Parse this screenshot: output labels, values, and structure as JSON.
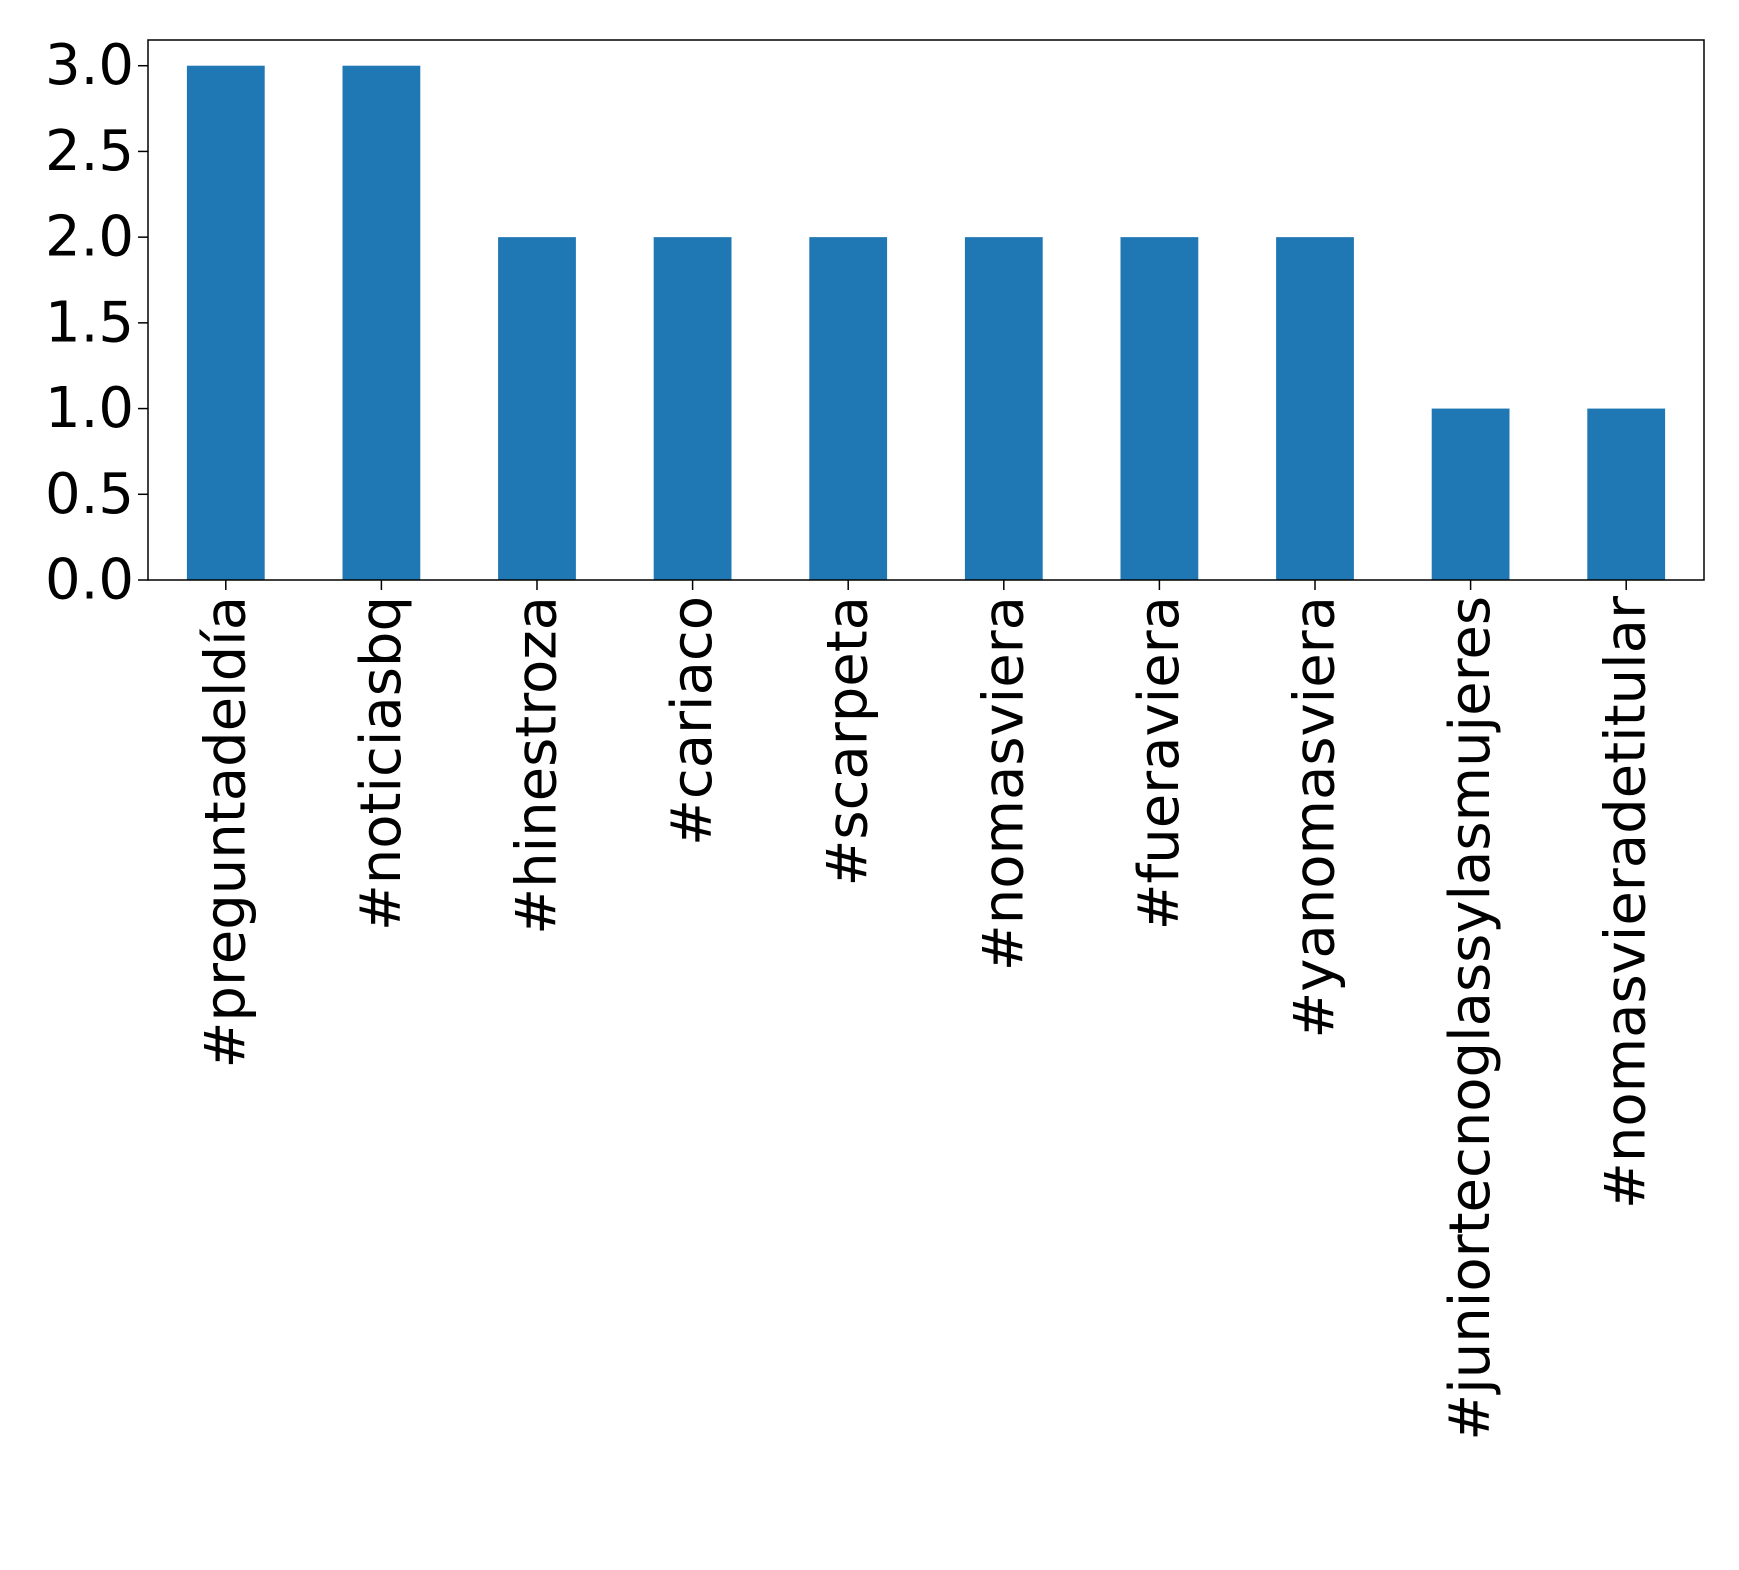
{
  "chart_data": {
    "type": "bar",
    "categories": [
      "#preguntadeldía",
      "#noticiasbq",
      "#hinestroza",
      "#cariaco",
      "#scarpeta",
      "#nomasviera",
      "#fueraviera",
      "#yanomasviera",
      "#juniortecnoglassylasmujeres",
      "#nomasvieradetitular"
    ],
    "values": [
      3,
      3,
      2,
      2,
      2,
      2,
      2,
      2,
      1,
      1
    ],
    "title": "",
    "xlabel": "",
    "ylabel": "",
    "ylim": [
      0,
      3.15
    ],
    "yticks": [
      "0.0",
      "0.5",
      "1.0",
      "1.5",
      "2.0",
      "2.5",
      "3.0"
    ],
    "bar_color": "#1f77b4",
    "grid": false,
    "legend": "none"
  }
}
